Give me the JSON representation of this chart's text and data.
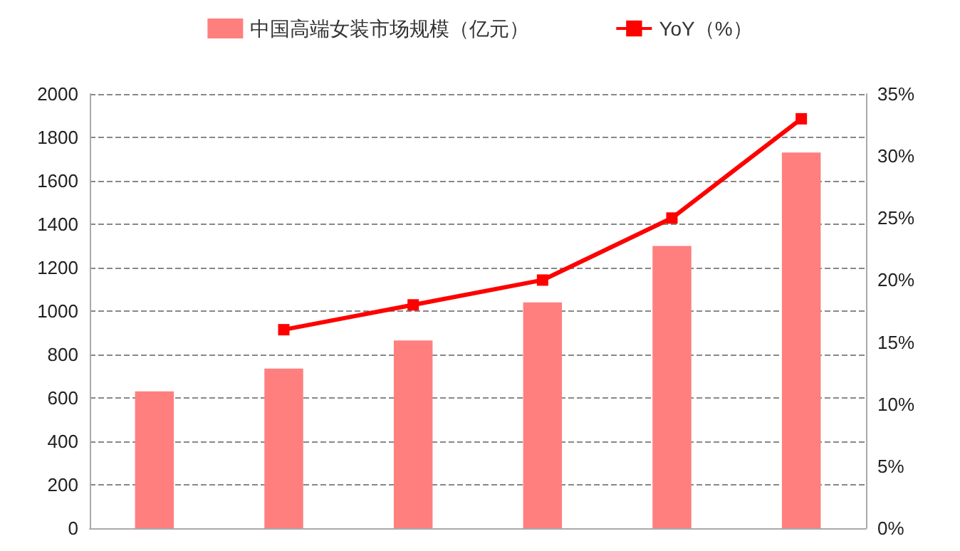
{
  "chart_data": {
    "type": "bar",
    "categories": [
      null,
      null,
      null,
      null,
      null,
      null
    ],
    "series": [
      {
        "name": "中国高端女装市场规模（亿元）",
        "color": "#ff7f7f",
        "values": [
          630,
          735,
          865,
          1040,
          1300,
          1730
        ]
      },
      {
        "name": "YoY（%）",
        "type": "line",
        "axis": "y2",
        "color": "#ff0000",
        "marker": "square",
        "values": [
          null,
          16,
          18,
          20,
          25,
          33
        ]
      }
    ],
    "ylim": [
      0,
      2000
    ],
    "yticks": [
      0,
      200,
      400,
      600,
      800,
      1000,
      1200,
      1400,
      1600,
      1800,
      2000
    ],
    "y2lim": [
      0,
      35
    ],
    "y2ticks": [
      {
        "value": 0,
        "label": "0%"
      },
      {
        "value": 5,
        "label": "5%"
      },
      {
        "value": 10,
        "label": "10%"
      },
      {
        "value": 15,
        "label": "15%"
      },
      {
        "value": 20,
        "label": "20%"
      },
      {
        "value": 25,
        "label": "25%"
      },
      {
        "value": 30,
        "label": "30%"
      },
      {
        "value": 35,
        "label": "35%"
      }
    ],
    "grid": "y",
    "legend": "top"
  }
}
